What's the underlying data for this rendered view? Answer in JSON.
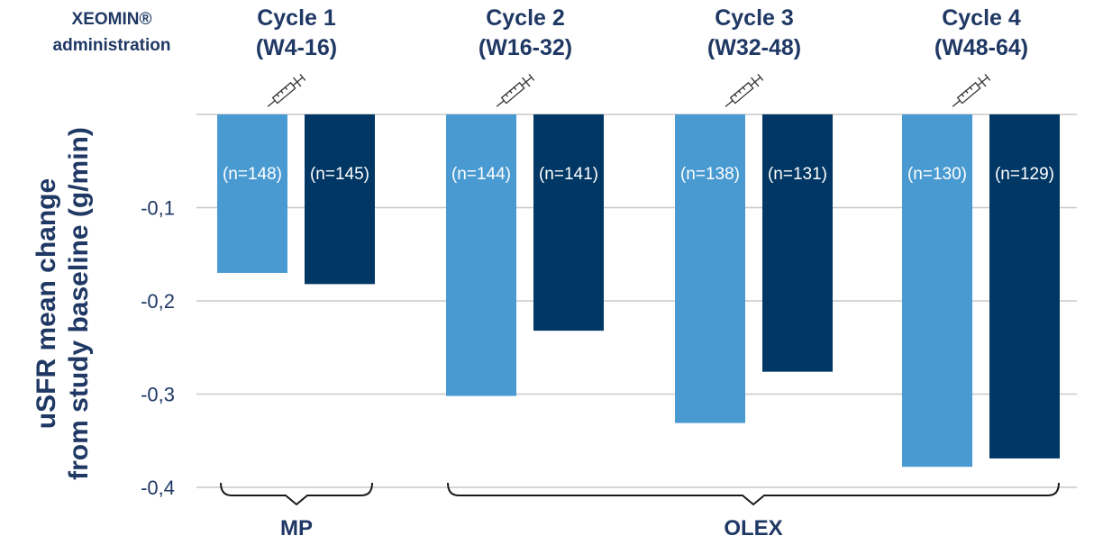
{
  "header": {
    "admin_line1": "XEOMIN®",
    "admin_line2": "administration"
  },
  "chart_data": {
    "type": "bar",
    "ylabel_line1": "uSFR mean change",
    "ylabel_line2": "from study baseline (g/min)",
    "ylim": [
      -0.4,
      0
    ],
    "yticks": [
      {
        "value": -0.1,
        "label": "-0,1"
      },
      {
        "value": -0.2,
        "label": "-0,2"
      },
      {
        "value": -0.3,
        "label": "-0,3"
      },
      {
        "value": -0.4,
        "label": "-0,4"
      }
    ],
    "grid": true,
    "categories": [
      {
        "line1": "Cycle 1",
        "line2": "(W4-16)"
      },
      {
        "line1": "Cycle 2",
        "line2": "(W16-32)"
      },
      {
        "line1": "Cycle 3",
        "line2": "(W32-48)"
      },
      {
        "line1": "Cycle 4",
        "line2": "(W48-64)"
      }
    ],
    "series": [
      {
        "color": "#4a9ad2",
        "values": [
          -0.17,
          -0.302,
          -0.331,
          -0.378
        ],
        "n_labels": [
          "(n=148)",
          "(n=144)",
          "(n=138)",
          "(n=130)"
        ]
      },
      {
        "color": "#003764",
        "values": [
          -0.182,
          -0.232,
          -0.276,
          -0.369
        ],
        "n_labels": [
          "(n=145)",
          "(n=141)",
          "(n=131)",
          "(n=129)"
        ]
      }
    ],
    "groups": [
      {
        "label": "MP",
        "categories": [
          0
        ]
      },
      {
        "label": "OLEX",
        "categories": [
          1,
          2,
          3
        ]
      }
    ],
    "marker_icon": "syringe-icon",
    "colors": {
      "axis_text": "#1f3864",
      "grid": "#c8c8c8",
      "bracket": "#1a1a1a"
    }
  }
}
